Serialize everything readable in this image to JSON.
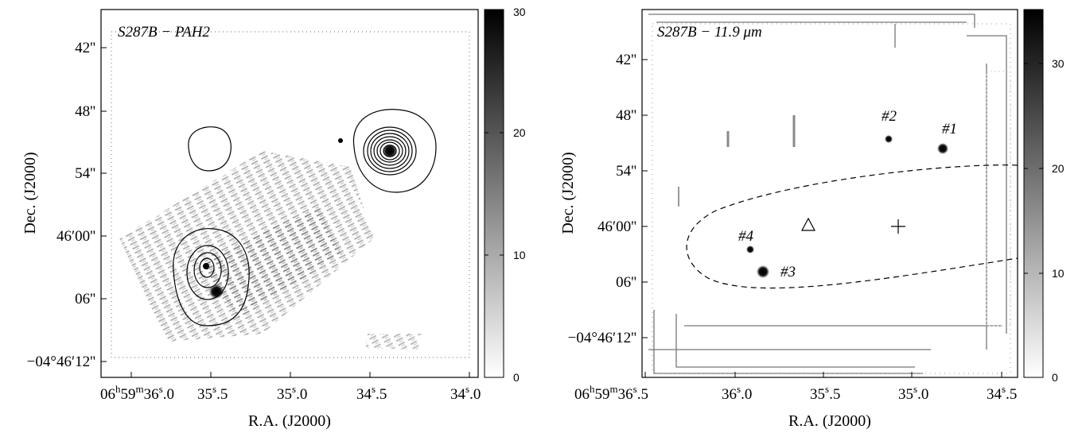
{
  "figure": {
    "panels": [
      {
        "title": "S287B − PAH2",
        "xlabel": "R.A. (J2000)",
        "ylabel": "Dec. (J2000)",
        "xticks": [
          {
            "h": "06",
            "m": "59",
            "s": "36",
            "f": "0"
          },
          {
            "s": "35",
            "f": "5"
          },
          {
            "s": "35",
            "f": "0"
          },
          {
            "s": "34",
            "f": "5"
          },
          {
            "s": "34",
            "f": "0"
          }
        ],
        "yticks": [
          "42''",
          "48''",
          "54''",
          "46′00''",
          "06''",
          "−04°46′12''"
        ],
        "colorbar": {
          "max_label": "30",
          "labels": [
            "30",
            "20",
            "10",
            "0"
          ],
          "range": [
            0,
            30
          ]
        }
      },
      {
        "title": "S287B − 11.9 μm",
        "xlabel": "R.A. (J2000)",
        "ylabel": "Dec. (J2000)",
        "xticks": [
          {
            "h": "06",
            "m": "59",
            "s": "36",
            "f": "5"
          },
          {
            "s": "36",
            "f": "0"
          },
          {
            "s": "35",
            "f": "5"
          },
          {
            "s": "35",
            "f": "0"
          },
          {
            "s": "34",
            "f": "5"
          }
        ],
        "yticks": [
          "42''",
          "48''",
          "54''",
          "46′00''",
          "06''",
          "−04°46′12''"
        ],
        "colorbar": {
          "labels": [
            "30",
            "20",
            "10",
            "0"
          ],
          "range": [
            0,
            35
          ]
        },
        "sources": [
          "#1",
          "#2",
          "#3",
          "#4"
        ]
      }
    ]
  }
}
